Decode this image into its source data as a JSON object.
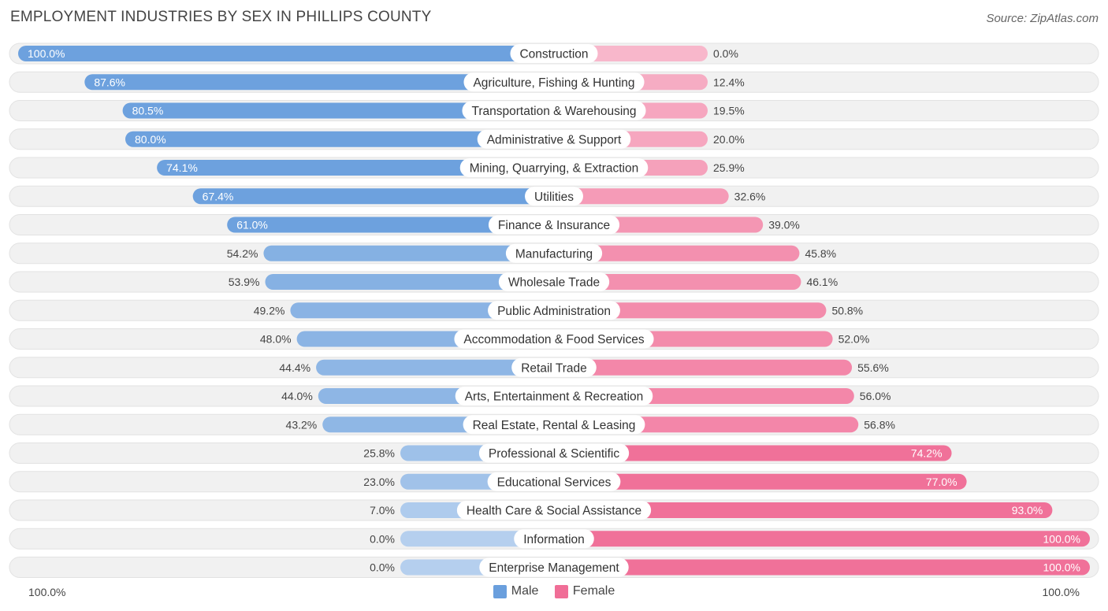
{
  "chart_data": {
    "type": "bar",
    "orientation": "horizontal-diverging",
    "title": "EMPLOYMENT INDUSTRIES BY SEX IN PHILLIPS COUNTY",
    "source": "Source: ZipAtlas.com",
    "axis_left_label": "100.0%",
    "axis_right_label": "100.0%",
    "colors": {
      "male": "#6a9fdd",
      "female": "#f06e97",
      "track": "#f1f1f1"
    },
    "legend": [
      {
        "name": "Male",
        "color": "#6a9fdd"
      },
      {
        "name": "Female",
        "color": "#f06e97"
      }
    ],
    "categories": [
      "Construction",
      "Agriculture, Fishing & Hunting",
      "Transportation & Warehousing",
      "Administrative & Support",
      "Mining, Quarrying, & Extraction",
      "Utilities",
      "Finance & Insurance",
      "Manufacturing",
      "Wholesale Trade",
      "Public Administration",
      "Accommodation & Food Services",
      "Retail Trade",
      "Arts, Entertainment & Recreation",
      "Real Estate, Rental & Leasing",
      "Professional & Scientific",
      "Educational Services",
      "Health Care & Social Assistance",
      "Information",
      "Enterprise Management"
    ],
    "series": [
      {
        "name": "Male",
        "values": [
          100.0,
          87.6,
          80.5,
          80.0,
          74.1,
          67.4,
          61.0,
          54.2,
          53.9,
          49.2,
          48.0,
          44.4,
          44.0,
          43.2,
          25.8,
          23.0,
          7.0,
          0.0,
          0.0
        ],
        "labels": [
          "100.0%",
          "87.6%",
          "80.5%",
          "80.0%",
          "74.1%",
          "67.4%",
          "61.0%",
          "54.2%",
          "53.9%",
          "49.2%",
          "48.0%",
          "44.4%",
          "44.0%",
          "43.2%",
          "25.8%",
          "23.0%",
          "7.0%",
          "0.0%",
          "0.0%"
        ]
      },
      {
        "name": "Female",
        "values": [
          0.0,
          12.4,
          19.5,
          20.0,
          25.9,
          32.6,
          39.0,
          45.8,
          46.1,
          50.8,
          52.0,
          55.6,
          56.0,
          56.8,
          74.2,
          77.0,
          93.0,
          100.0,
          100.0
        ],
        "labels": [
          "0.0%",
          "12.4%",
          "19.5%",
          "20.0%",
          "25.9%",
          "32.6%",
          "39.0%",
          "45.8%",
          "46.1%",
          "50.8%",
          "52.0%",
          "55.6%",
          "56.0%",
          "56.8%",
          "74.2%",
          "77.0%",
          "93.0%",
          "100.0%",
          "100.0%"
        ]
      }
    ],
    "xlim": [
      -100,
      100
    ]
  }
}
